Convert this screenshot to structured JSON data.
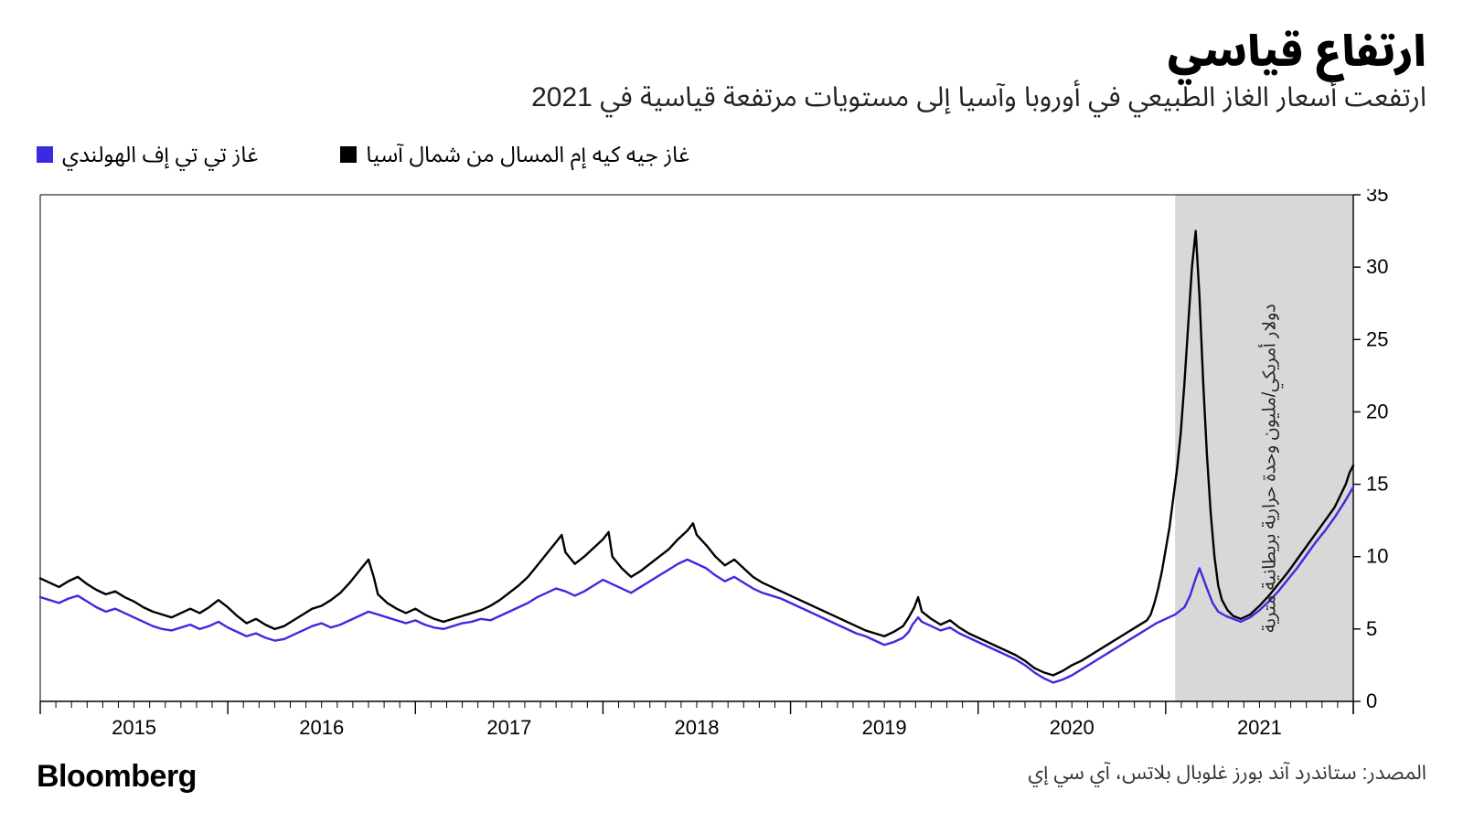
{
  "title": "ارتفاع قياسي",
  "subtitle": "ارتفعت أسعار الغاز الطبيعي في أوروبا وآسيا إلى مستويات مرتفعة قياسية في 2021",
  "brand": "Bloomberg",
  "source": "المصدر: ستاندرد آند بورز غلوبال بلاتس، آي سي إي",
  "y_axis_label": "دولار أمريكي/مليون وحدة حرارية بريطانية مترية",
  "chart": {
    "type": "line",
    "background_color": "#ffffff",
    "highlight_band": {
      "x_start": 6.05,
      "x_end": 7.0,
      "fill": "#d8d8d8"
    },
    "x_axis": {
      "min": 0,
      "max": 7,
      "ticks": [
        0.5,
        1.5,
        2.5,
        3.5,
        4.5,
        5.5,
        6.5
      ],
      "tick_labels": [
        "2015",
        "2016",
        "2017",
        "2018",
        "2019",
        "2020",
        "2021"
      ],
      "minor_ticks_per_major": 12,
      "tick_fontsize": 22,
      "tick_color": "#000000"
    },
    "y_axis": {
      "min": 0,
      "max": 35,
      "ticks": [
        0,
        5,
        10,
        15,
        20,
        25,
        30,
        35
      ],
      "side": "right",
      "tick_fontsize": 22,
      "tick_color": "#000000",
      "grid": false
    },
    "series": [
      {
        "name": "غاز تي تي إف الهولندي",
        "color": "#3b2be0",
        "line_width": 2.4,
        "legend_swatch": "#3b2be0",
        "data": [
          [
            0.0,
            7.2
          ],
          [
            0.05,
            7.0
          ],
          [
            0.1,
            6.8
          ],
          [
            0.15,
            7.1
          ],
          [
            0.2,
            7.3
          ],
          [
            0.25,
            6.9
          ],
          [
            0.3,
            6.5
          ],
          [
            0.35,
            6.2
          ],
          [
            0.4,
            6.4
          ],
          [
            0.45,
            6.1
          ],
          [
            0.5,
            5.8
          ],
          [
            0.55,
            5.5
          ],
          [
            0.6,
            5.2
          ],
          [
            0.65,
            5.0
          ],
          [
            0.7,
            4.9
          ],
          [
            0.75,
            5.1
          ],
          [
            0.8,
            5.3
          ],
          [
            0.85,
            5.0
          ],
          [
            0.9,
            5.2
          ],
          [
            0.95,
            5.5
          ],
          [
            1.0,
            5.1
          ],
          [
            1.05,
            4.8
          ],
          [
            1.1,
            4.5
          ],
          [
            1.15,
            4.7
          ],
          [
            1.2,
            4.4
          ],
          [
            1.25,
            4.2
          ],
          [
            1.3,
            4.3
          ],
          [
            1.35,
            4.6
          ],
          [
            1.4,
            4.9
          ],
          [
            1.45,
            5.2
          ],
          [
            1.5,
            5.4
          ],
          [
            1.55,
            5.1
          ],
          [
            1.6,
            5.3
          ],
          [
            1.65,
            5.6
          ],
          [
            1.7,
            5.9
          ],
          [
            1.75,
            6.2
          ],
          [
            1.8,
            6.0
          ],
          [
            1.85,
            5.8
          ],
          [
            1.9,
            5.6
          ],
          [
            1.95,
            5.4
          ],
          [
            2.0,
            5.6
          ],
          [
            2.05,
            5.3
          ],
          [
            2.1,
            5.1
          ],
          [
            2.15,
            5.0
          ],
          [
            2.2,
            5.2
          ],
          [
            2.25,
            5.4
          ],
          [
            2.3,
            5.5
          ],
          [
            2.35,
            5.7
          ],
          [
            2.4,
            5.6
          ],
          [
            2.45,
            5.9
          ],
          [
            2.5,
            6.2
          ],
          [
            2.55,
            6.5
          ],
          [
            2.6,
            6.8
          ],
          [
            2.65,
            7.2
          ],
          [
            2.7,
            7.5
          ],
          [
            2.75,
            7.8
          ],
          [
            2.8,
            7.6
          ],
          [
            2.85,
            7.3
          ],
          [
            2.9,
            7.6
          ],
          [
            2.95,
            8.0
          ],
          [
            3.0,
            8.4
          ],
          [
            3.05,
            8.1
          ],
          [
            3.1,
            7.8
          ],
          [
            3.15,
            7.5
          ],
          [
            3.2,
            7.9
          ],
          [
            3.25,
            8.3
          ],
          [
            3.3,
            8.7
          ],
          [
            3.35,
            9.1
          ],
          [
            3.4,
            9.5
          ],
          [
            3.45,
            9.8
          ],
          [
            3.5,
            9.5
          ],
          [
            3.55,
            9.2
          ],
          [
            3.6,
            8.7
          ],
          [
            3.65,
            8.3
          ],
          [
            3.7,
            8.6
          ],
          [
            3.75,
            8.2
          ],
          [
            3.8,
            7.8
          ],
          [
            3.85,
            7.5
          ],
          [
            3.9,
            7.3
          ],
          [
            3.95,
            7.1
          ],
          [
            4.0,
            6.8
          ],
          [
            4.05,
            6.5
          ],
          [
            4.1,
            6.2
          ],
          [
            4.15,
            5.9
          ],
          [
            4.2,
            5.6
          ],
          [
            4.25,
            5.3
          ],
          [
            4.3,
            5.0
          ],
          [
            4.35,
            4.7
          ],
          [
            4.4,
            4.5
          ],
          [
            4.45,
            4.2
          ],
          [
            4.5,
            3.9
          ],
          [
            4.55,
            4.1
          ],
          [
            4.6,
            4.4
          ],
          [
            4.63,
            4.8
          ],
          [
            4.65,
            5.3
          ],
          [
            4.68,
            5.8
          ],
          [
            4.7,
            5.5
          ],
          [
            4.75,
            5.2
          ],
          [
            4.8,
            4.9
          ],
          [
            4.85,
            5.1
          ],
          [
            4.9,
            4.7
          ],
          [
            4.95,
            4.4
          ],
          [
            5.0,
            4.1
          ],
          [
            5.05,
            3.8
          ],
          [
            5.1,
            3.5
          ],
          [
            5.15,
            3.2
          ],
          [
            5.2,
            2.9
          ],
          [
            5.25,
            2.5
          ],
          [
            5.3,
            2.0
          ],
          [
            5.35,
            1.6
          ],
          [
            5.4,
            1.3
          ],
          [
            5.45,
            1.5
          ],
          [
            5.5,
            1.8
          ],
          [
            5.55,
            2.2
          ],
          [
            5.6,
            2.6
          ],
          [
            5.65,
            3.0
          ],
          [
            5.7,
            3.4
          ],
          [
            5.75,
            3.8
          ],
          [
            5.8,
            4.2
          ],
          [
            5.85,
            4.6
          ],
          [
            5.9,
            5.0
          ],
          [
            5.95,
            5.4
          ],
          [
            6.0,
            5.7
          ],
          [
            6.05,
            6.0
          ],
          [
            6.1,
            6.5
          ],
          [
            6.13,
            7.3
          ],
          [
            6.16,
            8.5
          ],
          [
            6.18,
            9.2
          ],
          [
            6.2,
            8.5
          ],
          [
            6.22,
            7.8
          ],
          [
            6.25,
            6.8
          ],
          [
            6.28,
            6.2
          ],
          [
            6.32,
            5.9
          ],
          [
            6.36,
            5.7
          ],
          [
            6.4,
            5.5
          ],
          [
            6.45,
            5.8
          ],
          [
            6.5,
            6.3
          ],
          [
            6.55,
            6.9
          ],
          [
            6.6,
            7.6
          ],
          [
            6.65,
            8.4
          ],
          [
            6.7,
            9.2
          ],
          [
            6.75,
            10.1
          ],
          [
            6.8,
            11.0
          ],
          [
            6.85,
            11.8
          ],
          [
            6.9,
            12.7
          ],
          [
            6.95,
            13.7
          ],
          [
            7.0,
            14.8
          ]
        ]
      },
      {
        "name": "غاز جيه كيه إم المسال من شمال آسيا",
        "color": "#000000",
        "line_width": 2.4,
        "legend_swatch": "#000000",
        "data": [
          [
            0.0,
            8.5
          ],
          [
            0.05,
            8.2
          ],
          [
            0.1,
            7.9
          ],
          [
            0.15,
            8.3
          ],
          [
            0.2,
            8.6
          ],
          [
            0.25,
            8.1
          ],
          [
            0.3,
            7.7
          ],
          [
            0.35,
            7.4
          ],
          [
            0.4,
            7.6
          ],
          [
            0.45,
            7.2
          ],
          [
            0.5,
            6.9
          ],
          [
            0.55,
            6.5
          ],
          [
            0.6,
            6.2
          ],
          [
            0.65,
            6.0
          ],
          [
            0.7,
            5.8
          ],
          [
            0.75,
            6.1
          ],
          [
            0.8,
            6.4
          ],
          [
            0.85,
            6.1
          ],
          [
            0.9,
            6.5
          ],
          [
            0.95,
            7.0
          ],
          [
            1.0,
            6.5
          ],
          [
            1.05,
            5.9
          ],
          [
            1.1,
            5.4
          ],
          [
            1.15,
            5.7
          ],
          [
            1.2,
            5.3
          ],
          [
            1.25,
            5.0
          ],
          [
            1.3,
            5.2
          ],
          [
            1.35,
            5.6
          ],
          [
            1.4,
            6.0
          ],
          [
            1.45,
            6.4
          ],
          [
            1.5,
            6.6
          ],
          [
            1.55,
            7.0
          ],
          [
            1.6,
            7.5
          ],
          [
            1.65,
            8.2
          ],
          [
            1.7,
            9.0
          ],
          [
            1.75,
            9.8
          ],
          [
            1.78,
            8.5
          ],
          [
            1.8,
            7.4
          ],
          [
            1.85,
            6.8
          ],
          [
            1.9,
            6.4
          ],
          [
            1.95,
            6.1
          ],
          [
            2.0,
            6.4
          ],
          [
            2.05,
            6.0
          ],
          [
            2.1,
            5.7
          ],
          [
            2.15,
            5.5
          ],
          [
            2.2,
            5.7
          ],
          [
            2.25,
            5.9
          ],
          [
            2.3,
            6.1
          ],
          [
            2.35,
            6.3
          ],
          [
            2.4,
            6.6
          ],
          [
            2.45,
            7.0
          ],
          [
            2.5,
            7.5
          ],
          [
            2.55,
            8.0
          ],
          [
            2.6,
            8.6
          ],
          [
            2.65,
            9.4
          ],
          [
            2.7,
            10.2
          ],
          [
            2.75,
            11.0
          ],
          [
            2.78,
            11.5
          ],
          [
            2.8,
            10.3
          ],
          [
            2.85,
            9.5
          ],
          [
            2.9,
            10.0
          ],
          [
            2.95,
            10.6
          ],
          [
            3.0,
            11.2
          ],
          [
            3.03,
            11.7
          ],
          [
            3.05,
            10.0
          ],
          [
            3.1,
            9.2
          ],
          [
            3.15,
            8.6
          ],
          [
            3.2,
            9.0
          ],
          [
            3.25,
            9.5
          ],
          [
            3.3,
            10.0
          ],
          [
            3.35,
            10.5
          ],
          [
            3.4,
            11.2
          ],
          [
            3.45,
            11.8
          ],
          [
            3.48,
            12.3
          ],
          [
            3.5,
            11.5
          ],
          [
            3.55,
            10.8
          ],
          [
            3.6,
            10.0
          ],
          [
            3.65,
            9.4
          ],
          [
            3.7,
            9.8
          ],
          [
            3.75,
            9.2
          ],
          [
            3.8,
            8.6
          ],
          [
            3.85,
            8.2
          ],
          [
            3.9,
            7.9
          ],
          [
            3.95,
            7.6
          ],
          [
            4.0,
            7.3
          ],
          [
            4.05,
            7.0
          ],
          [
            4.1,
            6.7
          ],
          [
            4.15,
            6.4
          ],
          [
            4.2,
            6.1
          ],
          [
            4.25,
            5.8
          ],
          [
            4.3,
            5.5
          ],
          [
            4.35,
            5.2
          ],
          [
            4.4,
            4.9
          ],
          [
            4.45,
            4.7
          ],
          [
            4.5,
            4.5
          ],
          [
            4.55,
            4.8
          ],
          [
            4.6,
            5.2
          ],
          [
            4.63,
            5.8
          ],
          [
            4.66,
            6.5
          ],
          [
            4.68,
            7.2
          ],
          [
            4.7,
            6.2
          ],
          [
            4.75,
            5.7
          ],
          [
            4.8,
            5.3
          ],
          [
            4.85,
            5.6
          ],
          [
            4.9,
            5.1
          ],
          [
            4.95,
            4.7
          ],
          [
            5.0,
            4.4
          ],
          [
            5.05,
            4.1
          ],
          [
            5.1,
            3.8
          ],
          [
            5.15,
            3.5
          ],
          [
            5.2,
            3.2
          ],
          [
            5.25,
            2.8
          ],
          [
            5.3,
            2.3
          ],
          [
            5.35,
            2.0
          ],
          [
            5.4,
            1.8
          ],
          [
            5.45,
            2.1
          ],
          [
            5.5,
            2.5
          ],
          [
            5.55,
            2.8
          ],
          [
            5.6,
            3.2
          ],
          [
            5.65,
            3.6
          ],
          [
            5.7,
            4.0
          ],
          [
            5.75,
            4.4
          ],
          [
            5.8,
            4.8
          ],
          [
            5.85,
            5.2
          ],
          [
            5.9,
            5.6
          ],
          [
            5.92,
            6.0
          ],
          [
            5.94,
            6.8
          ],
          [
            5.96,
            7.8
          ],
          [
            5.98,
            9.0
          ],
          [
            6.0,
            10.5
          ],
          [
            6.02,
            12.0
          ],
          [
            6.04,
            14.0
          ],
          [
            6.06,
            16.0
          ],
          [
            6.08,
            18.5
          ],
          [
            6.1,
            22.0
          ],
          [
            6.12,
            26.0
          ],
          [
            6.14,
            30.0
          ],
          [
            6.16,
            32.5
          ],
          [
            6.18,
            28.0
          ],
          [
            6.2,
            22.0
          ],
          [
            6.22,
            17.0
          ],
          [
            6.24,
            13.0
          ],
          [
            6.26,
            10.0
          ],
          [
            6.28,
            8.0
          ],
          [
            6.3,
            7.0
          ],
          [
            6.33,
            6.3
          ],
          [
            6.36,
            5.9
          ],
          [
            6.4,
            5.7
          ],
          [
            6.45,
            6.0
          ],
          [
            6.5,
            6.6
          ],
          [
            6.55,
            7.3
          ],
          [
            6.6,
            8.1
          ],
          [
            6.65,
            8.9
          ],
          [
            6.7,
            9.8
          ],
          [
            6.75,
            10.7
          ],
          [
            6.8,
            11.6
          ],
          [
            6.85,
            12.5
          ],
          [
            6.9,
            13.4
          ],
          [
            6.93,
            14.2
          ],
          [
            6.96,
            15.0
          ],
          [
            6.98,
            15.8
          ],
          [
            7.0,
            16.3
          ]
        ]
      }
    ]
  }
}
